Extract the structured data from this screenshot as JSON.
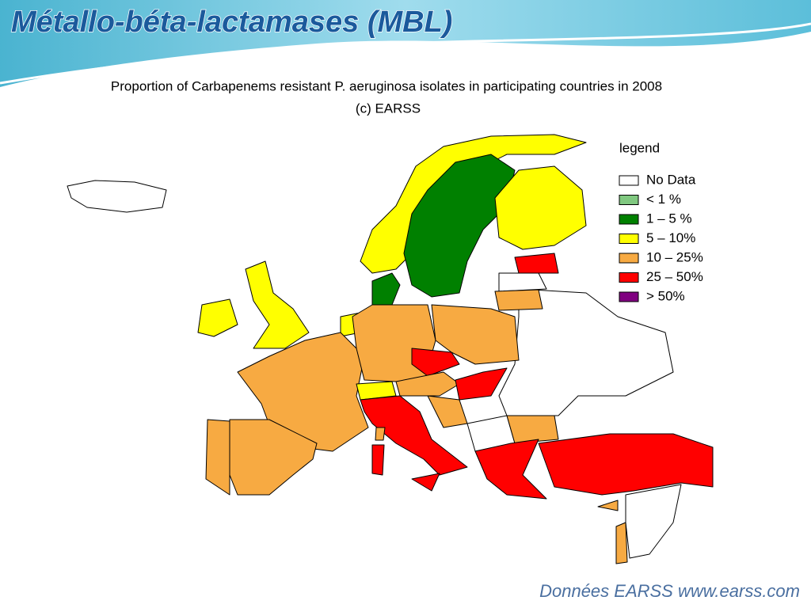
{
  "slide": {
    "title": "Métallo-béta-lactamases (MBL)",
    "footer": "Données EARSS www.earss.com"
  },
  "map": {
    "title": "Proportion of Carbapenems resistant P. aeruginosa isolates in participating countries in 2008",
    "subtitle": "(c) EARSS",
    "legend": {
      "title": "legend",
      "items": [
        {
          "label": "No Data",
          "color": "#ffffff"
        },
        {
          "label": "<  1 %",
          "color": "#80c880"
        },
        {
          "label": "1 – 5  %",
          "color": "#008000"
        },
        {
          "label": "5  – 10%",
          "color": "#ffff00"
        },
        {
          "label": "10 – 25%",
          "color": "#f7aa42"
        },
        {
          "label": "25 – 50%",
          "color": "#ff0000"
        },
        {
          "label": ">  50%",
          "color": "#800080"
        }
      ]
    }
  }
}
